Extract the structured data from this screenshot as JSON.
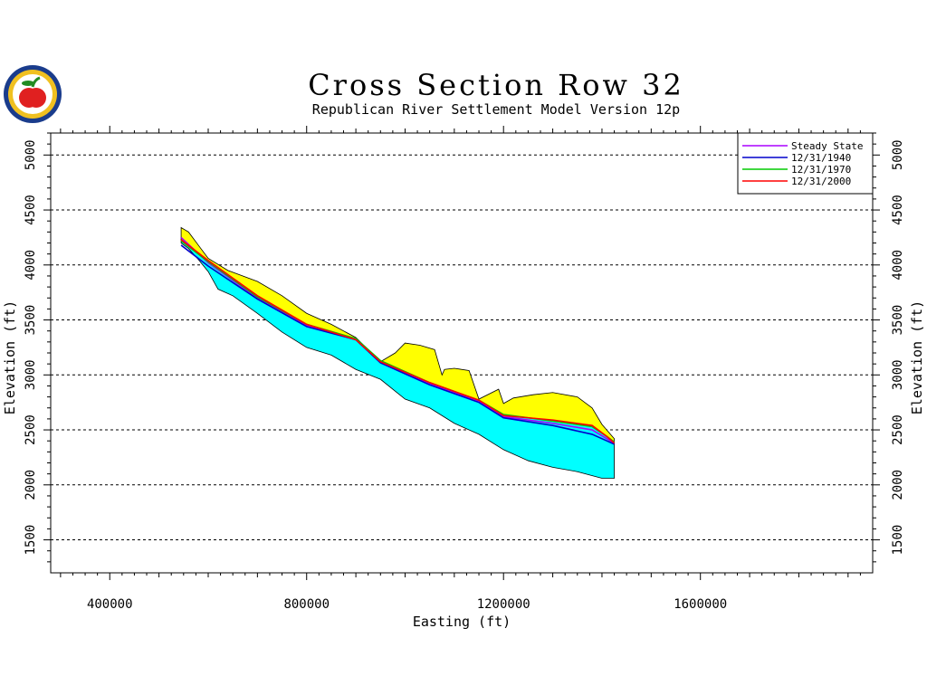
{
  "chart_data": {
    "type": "area",
    "title": "Cross Section Row 32",
    "subtitle": "Republican River Settlement Model Version 12p",
    "xlabel": "Easting (ft)",
    "ylabel": "Elevation (ft)",
    "xlim": [
      280000,
      1950000
    ],
    "ylim": [
      1200,
      5200
    ],
    "xticks": [
      400000,
      800000,
      1200000,
      1600000
    ],
    "yticks": [
      1500,
      2000,
      2500,
      3000,
      3500,
      4000,
      4500,
      5000
    ],
    "grid": "horizontal dashed",
    "legend_position": "top-right",
    "series": [
      {
        "name": "Steady State",
        "color": "#aa00ff",
        "x": [
          545000,
          600000,
          700000,
          800000,
          900000,
          950000,
          1050000,
          1150000,
          1200000,
          1300000,
          1380000,
          1410000,
          1425000
        ],
        "y": [
          4250,
          4020,
          3700,
          3450,
          3330,
          3120,
          2920,
          2760,
          2620,
          2560,
          2500,
          2420,
          2380
        ]
      },
      {
        "name": "12/31/1940",
        "color": "#0000cc",
        "x": [
          545000,
          600000,
          700000,
          800000,
          900000,
          950000,
          1050000,
          1150000,
          1200000,
          1300000,
          1380000,
          1410000,
          1425000
        ],
        "y": [
          4180,
          3990,
          3690,
          3440,
          3320,
          3110,
          2910,
          2750,
          2610,
          2540,
          2460,
          2400,
          2370
        ]
      },
      {
        "name": "12/31/1970",
        "color": "#00cc00",
        "x": [
          545000,
          600000,
          700000,
          800000,
          900000,
          950000,
          1050000,
          1150000,
          1200000,
          1300000,
          1380000,
          1410000,
          1425000
        ],
        "y": [
          4220,
          4030,
          3710,
          3460,
          3330,
          3130,
          2930,
          2770,
          2640,
          2580,
          2530,
          2440,
          2390
        ]
      },
      {
        "name": "12/31/2000",
        "color": "#ff0000",
        "x": [
          545000,
          600000,
          700000,
          800000,
          900000,
          950000,
          1050000,
          1150000,
          1200000,
          1300000,
          1380000,
          1410000,
          1425000
        ],
        "y": [
          4230,
          4040,
          3720,
          3460,
          3320,
          3120,
          2930,
          2770,
          2630,
          2590,
          2540,
          2440,
          2380
        ]
      }
    ],
    "land_surface": {
      "color": "#ffff00",
      "x": [
        545000,
        560000,
        580000,
        600000,
        640000,
        700000,
        750000,
        800000,
        850000,
        900000,
        950000,
        980000,
        1000000,
        1030000,
        1060000,
        1075000,
        1080000,
        1100000,
        1130000,
        1150000,
        1190000,
        1200000,
        1220000,
        1260000,
        1300000,
        1350000,
        1380000,
        1400000,
        1425000
      ],
      "y": [
        4340,
        4300,
        4180,
        4060,
        3950,
        3850,
        3720,
        3560,
        3460,
        3340,
        3120,
        3200,
        3290,
        3270,
        3230,
        3000,
        3050,
        3060,
        3040,
        2780,
        2870,
        2740,
        2790,
        2820,
        2840,
        2800,
        2700,
        2550,
        2420
      ]
    },
    "aquifer_base": {
      "color": "#00ffff",
      "x": [
        545000,
        560000,
        580000,
        600000,
        620000,
        650000,
        700000,
        750000,
        800000,
        850000,
        900000,
        950000,
        1000000,
        1050000,
        1100000,
        1150000,
        1200000,
        1250000,
        1300000,
        1350000,
        1400000,
        1425000
      ],
      "y": [
        4200,
        4150,
        4050,
        3940,
        3780,
        3720,
        3560,
        3390,
        3250,
        3180,
        3050,
        2960,
        2780,
        2700,
        2560,
        2460,
        2320,
        2220,
        2160,
        2120,
        2060,
        2060
      ]
    }
  },
  "logo": {
    "color_outer": "#1a3c8c",
    "color_ring": "#f0c020",
    "color_apple": "#e02020"
  }
}
